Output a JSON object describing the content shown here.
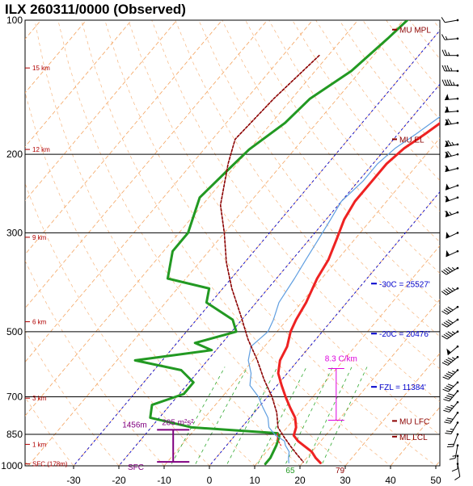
{
  "title": "ILX  260311/0000  (Observed)",
  "colors": {
    "temperature": "#ee2222",
    "dewpoint": "#229922",
    "wetbulb": "#5f9ee0",
    "parcel": "#8b0000",
    "isobar": "#000000",
    "isotherm": "#f4a460",
    "dry_adiabat": "#f4a460",
    "mixing_ratio": "#33aa33",
    "freezing": "#0000cc",
    "level_marker": "#8b0000",
    "lapse_rate": "#dd00dd",
    "helicity": "#800080"
  },
  "chart_data": {
    "type": "line",
    "subtype": "skew-t",
    "xlim": [
      -40,
      50
    ],
    "plim": [
      1050,
      100
    ],
    "x_ticks": [
      -30,
      -20,
      -10,
      0,
      10,
      20,
      30,
      40,
      50
    ],
    "pressure_ticks": [
      100,
      200,
      300,
      500,
      700,
      850,
      1000
    ],
    "pressure_tick_labels": [
      "100",
      "200",
      "300",
      "500",
      "700",
      "850",
      "1000"
    ],
    "height_ticks": [
      {
        "p": 128,
        "label": "15 km"
      },
      {
        "p": 195,
        "label": "12 km"
      },
      {
        "p": 307,
        "label": "9 km"
      },
      {
        "p": 475,
        "label": "6 km"
      },
      {
        "p": 705,
        "label": "3 km"
      },
      {
        "p": 895,
        "label": "1 km"
      },
      {
        "p": 990,
        "label": "SFC (178m)"
      }
    ],
    "series": [
      {
        "key": "temperature",
        "points": [
          [
            -1,
            99
          ],
          [
            -2,
            104
          ],
          [
            -4,
            115
          ],
          [
            -6,
            126
          ],
          [
            -10,
            140
          ],
          [
            -11,
            150
          ],
          [
            -12,
            165
          ],
          [
            -14,
            180
          ],
          [
            -16,
            194
          ],
          [
            -17,
            210
          ],
          [
            -17,
            230
          ],
          [
            -17,
            255
          ],
          [
            -16,
            280
          ],
          [
            -14,
            310
          ],
          [
            -12,
            345
          ],
          [
            -11,
            380
          ],
          [
            -9,
            430
          ],
          [
            -8,
            470
          ],
          [
            -7,
            500
          ],
          [
            -5,
            540
          ],
          [
            -4,
            580
          ],
          [
            -2,
            620
          ],
          [
            1,
            660
          ],
          [
            4,
            700
          ],
          [
            7,
            740
          ],
          [
            10,
            780
          ],
          [
            12,
            820
          ],
          [
            13,
            855
          ],
          [
            15,
            880
          ],
          [
            17,
            900
          ],
          [
            20,
            930
          ],
          [
            22,
            960
          ],
          [
            24,
            985
          ]
        ]
      },
      {
        "key": "dewpoint",
        "points": [
          [
            -39,
            99
          ],
          [
            -40,
            110
          ],
          [
            -42,
            130
          ],
          [
            -46,
            150
          ],
          [
            -47,
            170
          ],
          [
            -50,
            195
          ],
          [
            -51,
            220
          ],
          [
            -52,
            250
          ],
          [
            -48,
            300
          ],
          [
            -48,
            330
          ],
          [
            -44,
            380
          ],
          [
            -33,
            400
          ],
          [
            -31,
            430
          ],
          [
            -22,
            470
          ],
          [
            -19,
            500
          ],
          [
            -26,
            530
          ],
          [
            -21,
            550
          ],
          [
            -36,
            580
          ],
          [
            -24,
            610
          ],
          [
            -19,
            650
          ],
          [
            -19,
            690
          ],
          [
            -24,
            730
          ],
          [
            -22,
            780
          ],
          [
            -11,
            820
          ],
          [
            9,
            845
          ],
          [
            10,
            860
          ],
          [
            11,
            900
          ],
          [
            12,
            960
          ],
          [
            12,
            990
          ]
        ]
      },
      {
        "key": "wetbulb",
        "points": [
          [
            -2,
            99
          ],
          [
            -3,
            104
          ],
          [
            -6,
            115
          ],
          [
            -8,
            126
          ],
          [
            -12,
            140
          ],
          [
            -13,
            150
          ],
          [
            -14,
            165
          ],
          [
            -16,
            180
          ],
          [
            -18,
            194
          ],
          [
            -19,
            210
          ],
          [
            -19,
            230
          ],
          [
            -20,
            255
          ],
          [
            -19,
            280
          ],
          [
            -18,
            310
          ],
          [
            -17,
            345
          ],
          [
            -16,
            380
          ],
          [
            -15,
            430
          ],
          [
            -13,
            470
          ],
          [
            -12,
            500
          ],
          [
            -13,
            540
          ],
          [
            -11,
            580
          ],
          [
            -8,
            620
          ],
          [
            -6,
            660
          ],
          [
            -2,
            700
          ],
          [
            1,
            740
          ],
          [
            4,
            780
          ],
          [
            6,
            820
          ],
          [
            9,
            855
          ],
          [
            12,
            880
          ],
          [
            13,
            900
          ],
          [
            15,
            930
          ],
          [
            16,
            960
          ],
          [
            17,
            985
          ]
        ]
      },
      {
        "key": "parcel",
        "points": [
          [
            -52,
            120
          ],
          [
            -54,
            150
          ],
          [
            -55,
            185
          ],
          [
            -52,
            210
          ],
          [
            -46,
            260
          ],
          [
            -40,
            300
          ],
          [
            -34,
            350
          ],
          [
            -28,
            400
          ],
          [
            -21,
            460
          ],
          [
            -15,
            520
          ],
          [
            -9,
            580
          ],
          [
            -4,
            640
          ],
          [
            1,
            700
          ],
          [
            5,
            760
          ],
          [
            8,
            820
          ],
          [
            11,
            860
          ],
          [
            14,
            900
          ],
          [
            17,
            940
          ],
          [
            20,
            980
          ]
        ]
      },
      {
        "key": "virtual_temperature",
        "points": [
          [
            9,
            845
          ],
          [
            10,
            870
          ],
          [
            12,
            900
          ]
        ]
      }
    ],
    "level_markers": [
      {
        "p": 105,
        "label": "MU MPL"
      },
      {
        "p": 185,
        "label": "MU EL"
      },
      {
        "p": 793,
        "label": "MU LFC"
      },
      {
        "p": 860,
        "label": "ML LCL"
      }
    ],
    "isotherm_labels": [
      {
        "p": 390,
        "label": "-30C = 25527'"
      },
      {
        "p": 505,
        "label": "-20C = 20476'"
      },
      {
        "p": 665,
        "label": "FZL = 11384'"
      }
    ],
    "lapse_rate": {
      "label": "8.3 C/km",
      "p_top": 605,
      "p_bottom": 790,
      "x": 28
    },
    "helicity": {
      "label": "285 m²s²",
      "depth_label": "1456m",
      "p_top": 830,
      "p_bottom": 980,
      "x": -8
    },
    "sfc_label": "SFC",
    "mixing_labels": [
      {
        "text": "65",
        "x": 19
      },
      {
        "text": "79",
        "x": 30
      }
    ],
    "wind_barbs": [
      {
        "p": 100,
        "speed": 10,
        "dir": 260
      },
      {
        "p": 110,
        "speed": 15,
        "dir": 265
      },
      {
        "p": 120,
        "speed": 25,
        "dir": 270
      },
      {
        "p": 130,
        "speed": 35,
        "dir": 270
      },
      {
        "p": 140,
        "speed": 45,
        "dir": 270
      },
      {
        "p": 150,
        "speed": 55,
        "dir": 265
      },
      {
        "p": 160,
        "speed": 60,
        "dir": 265
      },
      {
        "p": 170,
        "speed": 70,
        "dir": 260
      },
      {
        "p": 190,
        "speed": 75,
        "dir": 260
      },
      {
        "p": 200,
        "speed": 70,
        "dir": 255
      },
      {
        "p": 215,
        "speed": 60,
        "dir": 255
      },
      {
        "p": 235,
        "speed": 55,
        "dir": 250
      },
      {
        "p": 250,
        "speed": 60,
        "dir": 250
      },
      {
        "p": 270,
        "speed": 65,
        "dir": 250
      },
      {
        "p": 300,
        "speed": 55,
        "dir": 245
      },
      {
        "p": 330,
        "speed": 50,
        "dir": 245
      },
      {
        "p": 360,
        "speed": 45,
        "dir": 240
      },
      {
        "p": 400,
        "speed": 45,
        "dir": 240
      },
      {
        "p": 440,
        "speed": 40,
        "dir": 235
      },
      {
        "p": 470,
        "speed": 40,
        "dir": 235
      },
      {
        "p": 500,
        "speed": 45,
        "dir": 235
      },
      {
        "p": 540,
        "speed": 50,
        "dir": 230
      },
      {
        "p": 570,
        "speed": 45,
        "dir": 230
      },
      {
        "p": 610,
        "speed": 45,
        "dir": 225
      },
      {
        "p": 650,
        "speed": 40,
        "dir": 225
      },
      {
        "p": 680,
        "speed": 40,
        "dir": 220
      },
      {
        "p": 720,
        "speed": 35,
        "dir": 220
      },
      {
        "p": 760,
        "speed": 30,
        "dir": 215
      },
      {
        "p": 800,
        "speed": 25,
        "dir": 210
      },
      {
        "p": 850,
        "speed": 20,
        "dir": 200
      },
      {
        "p": 900,
        "speed": 15,
        "dir": 190
      },
      {
        "p": 950,
        "speed": 10,
        "dir": 180
      },
      {
        "p": 990,
        "speed": 10,
        "dir": 170
      }
    ]
  }
}
